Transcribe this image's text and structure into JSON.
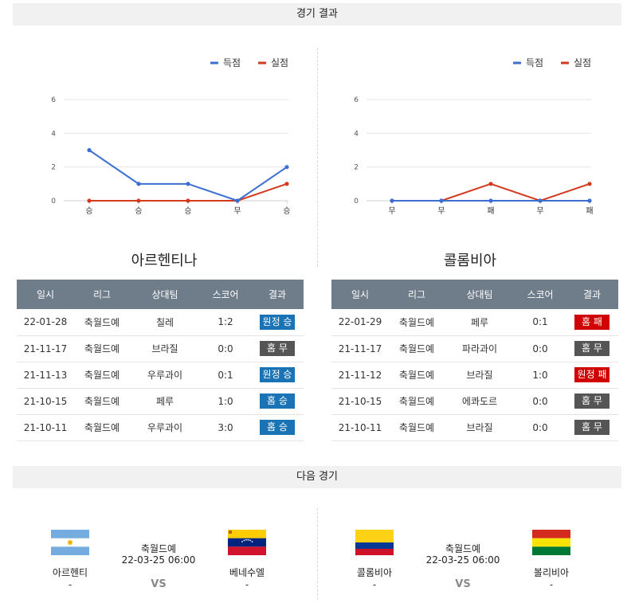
{
  "section_titles": {
    "results": "경기 결과",
    "next": "다음 경기"
  },
  "colors": {
    "scored": "#3b6fd1",
    "conceded": "#d33a1e",
    "header_bg": "#6f7c8a",
    "win": "#1a73b5",
    "draw": "#555555",
    "loss": "#d10000"
  },
  "legend": {
    "scored": "득점",
    "conceded": "실점"
  },
  "table_headers": [
    "일시",
    "리그",
    "상대팀",
    "스코어",
    "결과"
  ],
  "chart_data": [
    {
      "type": "line",
      "categories": [
        "승",
        "승",
        "승",
        "무",
        "승"
      ],
      "ylim": [
        0,
        6
      ],
      "yticks": [
        "0",
        "2",
        "4",
        "6"
      ],
      "series": [
        {
          "name": "득점",
          "values": [
            3,
            1,
            1,
            0,
            2
          ]
        },
        {
          "name": "실점",
          "values": [
            0,
            0,
            0,
            0,
            1
          ]
        }
      ]
    },
    {
      "type": "line",
      "categories": [
        "무",
        "무",
        "패",
        "무",
        "패"
      ],
      "ylim": [
        0,
        6
      ],
      "yticks": [
        "0",
        "2",
        "4",
        "6"
      ],
      "series": [
        {
          "name": "득점",
          "values": [
            0,
            0,
            0,
            0,
            0
          ]
        },
        {
          "name": "실점",
          "values": [
            0,
            0,
            1,
            0,
            1
          ]
        }
      ]
    }
  ],
  "teams": [
    {
      "name": "아르헨티나",
      "rows": [
        {
          "date": "22-01-28",
          "league": "축월드예",
          "opponent": "칠레",
          "score": "1:2",
          "result": "원정 승",
          "kind": "win"
        },
        {
          "date": "21-11-17",
          "league": "축월드예",
          "opponent": "브라질",
          "score": "0:0",
          "result": "홈 무",
          "kind": "draw"
        },
        {
          "date": "21-11-13",
          "league": "축월드예",
          "opponent": "우루과이",
          "score": "0:1",
          "result": "원정 승",
          "kind": "win"
        },
        {
          "date": "21-10-15",
          "league": "축월드예",
          "opponent": "페루",
          "score": "1:0",
          "result": "홈 승",
          "kind": "win"
        },
        {
          "date": "21-10-11",
          "league": "축월드예",
          "opponent": "우루과이",
          "score": "3:0",
          "result": "홈 승",
          "kind": "win"
        }
      ]
    },
    {
      "name": "콜롬비아",
      "rows": [
        {
          "date": "22-01-29",
          "league": "축월드예",
          "opponent": "페루",
          "score": "0:1",
          "result": "홈 패",
          "kind": "loss"
        },
        {
          "date": "21-11-17",
          "league": "축월드예",
          "opponent": "파라과이",
          "score": "0:0",
          "result": "홈 무",
          "kind": "draw"
        },
        {
          "date": "21-11-12",
          "league": "축월드예",
          "opponent": "브라질",
          "score": "1:0",
          "result": "원정 패",
          "kind": "loss"
        },
        {
          "date": "21-10-15",
          "league": "축월드예",
          "opponent": "에콰도르",
          "score": "0:0",
          "result": "홈 무",
          "kind": "draw"
        },
        {
          "date": "21-10-11",
          "league": "축월드예",
          "opponent": "브라질",
          "score": "0:0",
          "result": "홈 무",
          "kind": "draw"
        }
      ]
    }
  ],
  "next_matches": [
    {
      "league": "축월드예",
      "datetime": "22-03-25 06:00",
      "vs": "VS",
      "home": {
        "name": "아르헨티",
        "rank": "-"
      },
      "away": {
        "name": "베네수엘",
        "rank": "-"
      }
    },
    {
      "league": "축월드예",
      "datetime": "22-03-25 06:00",
      "vs": "VS",
      "home": {
        "name": "콜롬비아",
        "rank": "-"
      },
      "away": {
        "name": "볼리비아",
        "rank": "-"
      }
    }
  ]
}
